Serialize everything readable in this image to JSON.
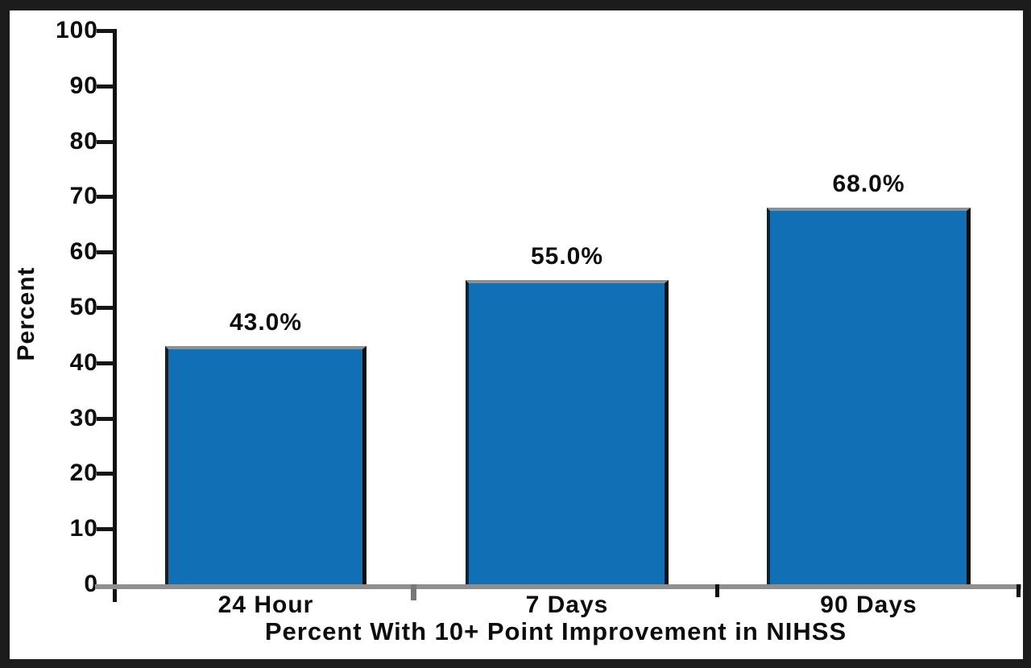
{
  "chart_data": {
    "type": "bar",
    "categories": [
      "24 Hour",
      "7 Days",
      "90 Days"
    ],
    "values": [
      43.0,
      55.0,
      68.0
    ],
    "value_labels": [
      "43.0%",
      "55.0%",
      "68.0%"
    ],
    "xlabel": "Percent With 10+ Point Improvement in NIHSS",
    "ylabel": "Percent",
    "ylim": [
      0,
      100
    ],
    "yticks": [
      0,
      10,
      20,
      30,
      40,
      50,
      60,
      70,
      80,
      90,
      100
    ],
    "grid": false,
    "legend": "none",
    "colors": {
      "bar_fill": "#1170B5",
      "bar_edge_dark": "#0d0d0d",
      "bar_edge_light": "#8f8f8f",
      "axis": "#111111",
      "baseline": "#8f8f8f",
      "text": "#0d0d0d",
      "frame": "#1c1c1c",
      "background": "#ffffff"
    }
  }
}
